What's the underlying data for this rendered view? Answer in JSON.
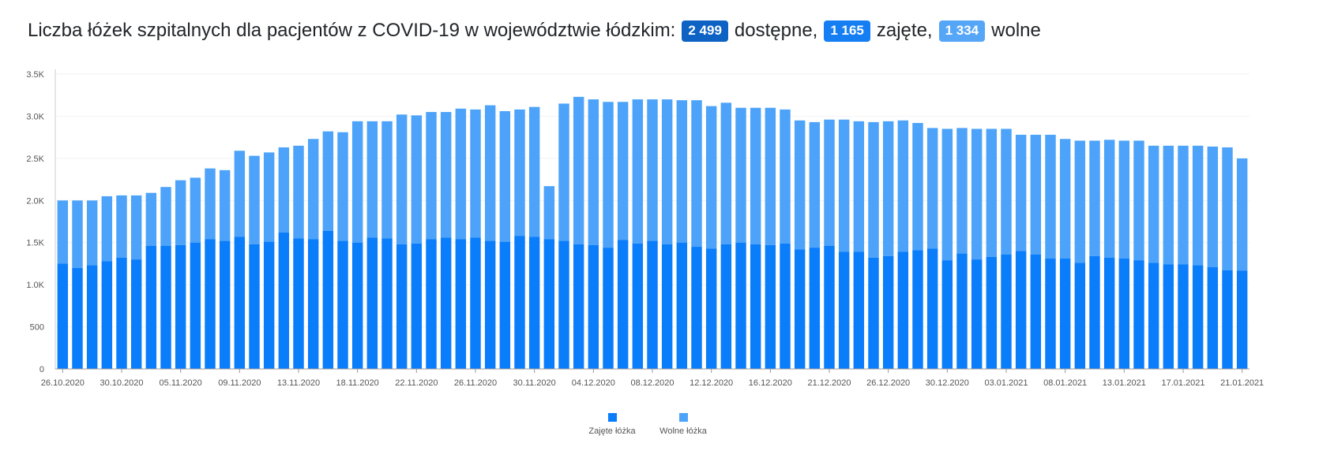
{
  "header": {
    "title_prefix": "Liczba łóżek szpitalnych dla pacjentów z COVID-19 w województwie łódzkim:",
    "available_value": "2 499",
    "available_label": "dostępne,",
    "occupied_value": "1 165",
    "occupied_label": "zajęte,",
    "free_value": "1 334",
    "free_label": "wolne"
  },
  "colors": {
    "badge_available": "#0d62c4",
    "badge_occupied": "#157ef3",
    "badge_free": "#56a6f8",
    "occupied": "#0a7dfb",
    "free": "#4ca3f9",
    "axis": "#cccccc",
    "grid": "#f2f2f2"
  },
  "chart_data": {
    "type": "bar",
    "stacked": true,
    "x_tick_labels": [
      "26.10.2020",
      "30.10.2020",
      "05.11.2020",
      "09.11.2020",
      "13.11.2020",
      "18.11.2020",
      "22.11.2020",
      "26.11.2020",
      "30.11.2020",
      "04.12.2020",
      "08.12.2020",
      "12.12.2020",
      "16.12.2020",
      "21.12.2020",
      "26.12.2020",
      "30.12.2020",
      "03.01.2021",
      "08.01.2021",
      "13.01.2021",
      "17.01.2021",
      "21.01.2021"
    ],
    "x_tick_index": [
      0,
      4,
      8,
      12,
      16,
      20,
      24,
      28,
      32,
      36,
      40,
      44,
      48,
      52,
      56,
      60,
      64,
      68,
      72,
      76,
      80
    ],
    "y_ticks": [
      0,
      500,
      1000,
      1500,
      2000,
      2500,
      3000,
      3500
    ],
    "y_tick_labels": [
      "0",
      "500",
      "1.0K",
      "1.5K",
      "2.0K",
      "2.5K",
      "3.0K",
      "3.5K"
    ],
    "ylim": [
      0,
      3500
    ],
    "grid": true,
    "legend_position": "bottom",
    "series": [
      {
        "name": "Zajęte łóżka",
        "color": "#0a7dfb",
        "values": [
          1250,
          1200,
          1230,
          1280,
          1320,
          1300,
          1460,
          1460,
          1470,
          1500,
          1540,
          1520,
          1570,
          1480,
          1510,
          1620,
          1550,
          1540,
          1640,
          1520,
          1500,
          1560,
          1550,
          1480,
          1490,
          1540,
          1560,
          1540,
          1560,
          1520,
          1510,
          1580,
          1570,
          1540,
          1520,
          1480,
          1470,
          1440,
          1530,
          1490,
          1520,
          1480,
          1500,
          1450,
          1430,
          1480,
          1500,
          1480,
          1470,
          1490,
          1420,
          1440,
          1460,
          1390,
          1390,
          1320,
          1340,
          1390,
          1410,
          1430,
          1290,
          1370,
          1300,
          1330,
          1360,
          1400,
          1360,
          1310,
          1310,
          1260,
          1340,
          1320,
          1310,
          1290,
          1260,
          1240,
          1240,
          1230,
          1210,
          1170,
          1165
        ]
      },
      {
        "name": "Wolne łóżka",
        "color": "#4ca3f9",
        "values": [
          750,
          800,
          770,
          770,
          740,
          760,
          630,
          700,
          770,
          770,
          840,
          840,
          1020,
          1050,
          1060,
          1010,
          1100,
          1190,
          1180,
          1290,
          1440,
          1380,
          1390,
          1540,
          1520,
          1510,
          1490,
          1550,
          1520,
          1610,
          1550,
          1500,
          1540,
          630,
          1630,
          1750,
          1730,
          1730,
          1640,
          1710,
          1680,
          1720,
          1690,
          1740,
          1690,
          1680,
          1600,
          1620,
          1630,
          1590,
          1530,
          1490,
          1500,
          1570,
          1550,
          1610,
          1600,
          1560,
          1510,
          1430,
          1560,
          1490,
          1550,
          1520,
          1490,
          1380,
          1420,
          1470,
          1420,
          1450,
          1370,
          1400,
          1400,
          1420,
          1390,
          1410,
          1410,
          1420,
          1430,
          1460,
          1334
        ]
      }
    ]
  }
}
